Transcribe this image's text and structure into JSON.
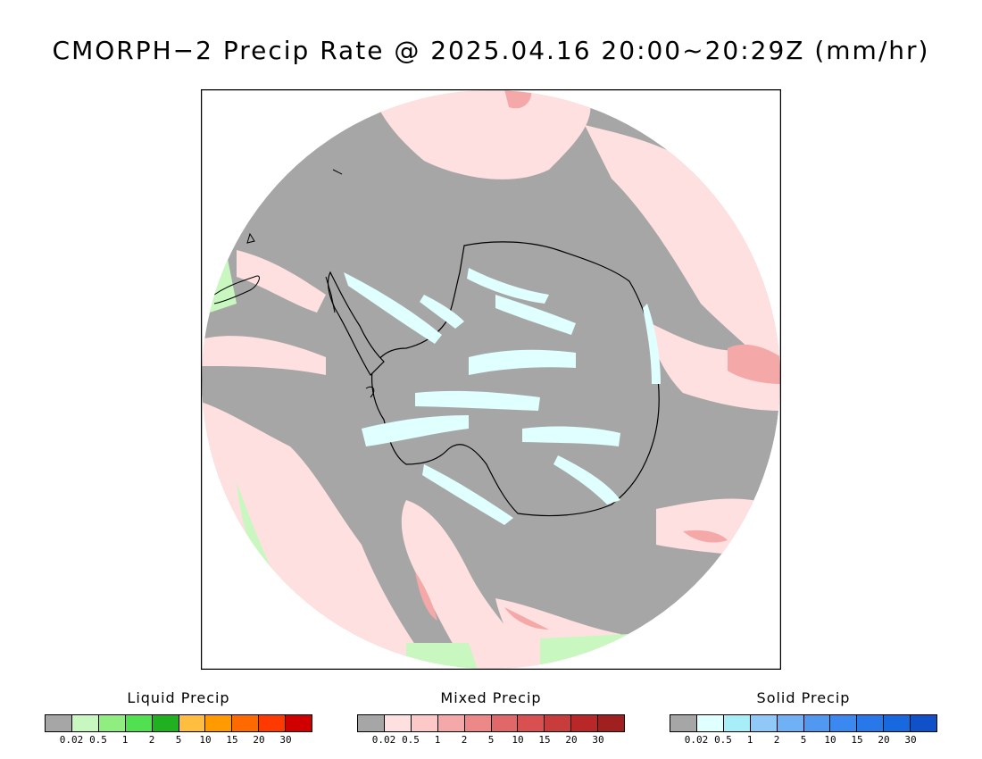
{
  "title": "CMORPH−2 Precip Rate @ 2025.04.16 20:00~20:29Z (mm/hr)",
  "map": {
    "projection": "south-polar-stereographic",
    "background_color": "#a6a6a6",
    "coast_color": "#000000"
  },
  "legends": [
    {
      "id": "liquid",
      "title": "Liquid Precip",
      "ticks": [
        "0.02",
        "0.5",
        "1",
        "2",
        "5",
        "10",
        "15",
        "20",
        "30"
      ],
      "colors": [
        "#a6a6a6",
        "#c8f8c0",
        "#90ee80",
        "#50e050",
        "#20b020",
        "#ffbe40",
        "#ff9a00",
        "#ff6a00",
        "#ff3a00",
        "#d00000"
      ]
    },
    {
      "id": "mixed",
      "title": "Mixed Precip",
      "ticks": [
        "0.02",
        "0.5",
        "1",
        "2",
        "5",
        "10",
        "15",
        "20",
        "30"
      ],
      "colors": [
        "#a6a6a6",
        "#ffe0e0",
        "#fcc8c8",
        "#f4a8a8",
        "#ec8888",
        "#e06868",
        "#d85050",
        "#c83c3c",
        "#b82828",
        "#a02020"
      ]
    },
    {
      "id": "solid",
      "title": "Solid Precip",
      "ticks": [
        "0.02",
        "0.5",
        "1",
        "2",
        "5",
        "10",
        "15",
        "20",
        "30"
      ],
      "colors": [
        "#a6a6a6",
        "#e0ffff",
        "#a8eef8",
        "#90c8f8",
        "#70b0f4",
        "#5098f0",
        "#3a88f0",
        "#2878ea",
        "#1868e0",
        "#1050c8"
      ]
    }
  ]
}
